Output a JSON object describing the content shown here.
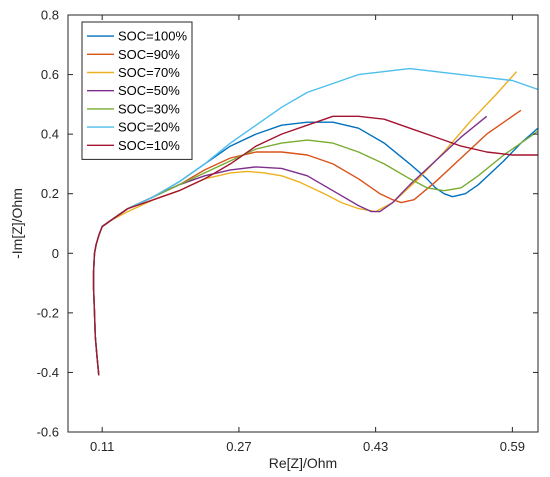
{
  "chart_data": {
    "type": "line",
    "title": "",
    "xlabel": "Re[Z]/Ohm",
    "ylabel": "-Im[Z]/Ohm",
    "xlim": [
      0.07,
      0.62
    ],
    "ylim": [
      -0.6,
      0.8
    ],
    "xticks": [
      0.11,
      0.27,
      0.43,
      0.59
    ],
    "xtick_labels": [
      "0.11",
      "0.27",
      "0.43",
      "0.59"
    ],
    "yticks": [
      -0.6,
      -0.4,
      -0.2,
      0,
      0.2,
      0.4,
      0.6,
      0.8
    ],
    "ytick_labels": [
      "-0.6",
      "-0.4",
      "-0.2",
      "0",
      "0.2",
      "0.4",
      "0.6",
      "0.8"
    ],
    "grid": false,
    "legend_position": "top-left",
    "series": [
      {
        "name": "SOC=100%",
        "color": "#0072BD",
        "x": [
          0.106,
          0.104,
          0.102,
          0.101,
          0.1,
          0.1,
          0.101,
          0.103,
          0.106,
          0.11,
          0.12,
          0.14,
          0.17,
          0.2,
          0.23,
          0.26,
          0.29,
          0.32,
          0.35,
          0.38,
          0.41,
          0.44,
          0.47,
          0.49,
          0.5,
          0.51,
          0.52,
          0.535,
          0.55,
          0.565,
          0.58,
          0.6,
          0.62
        ],
        "y": [
          -0.41,
          -0.35,
          -0.28,
          -0.2,
          -0.12,
          -0.06,
          0.0,
          0.03,
          0.06,
          0.09,
          0.11,
          0.15,
          0.19,
          0.24,
          0.3,
          0.36,
          0.4,
          0.43,
          0.44,
          0.44,
          0.42,
          0.37,
          0.3,
          0.25,
          0.22,
          0.2,
          0.19,
          0.2,
          0.23,
          0.27,
          0.31,
          0.37,
          0.42
        ]
      },
      {
        "name": "SOC=90%",
        "color": "#D95319",
        "x": [
          0.106,
          0.104,
          0.102,
          0.101,
          0.1,
          0.1,
          0.101,
          0.103,
          0.106,
          0.11,
          0.12,
          0.14,
          0.17,
          0.2,
          0.23,
          0.26,
          0.29,
          0.32,
          0.35,
          0.38,
          0.41,
          0.435,
          0.45,
          0.46,
          0.475,
          0.5,
          0.53,
          0.56,
          0.6
        ],
        "y": [
          -0.41,
          -0.35,
          -0.28,
          -0.2,
          -0.12,
          -0.06,
          0.0,
          0.03,
          0.06,
          0.09,
          0.11,
          0.15,
          0.19,
          0.23,
          0.28,
          0.32,
          0.34,
          0.34,
          0.33,
          0.3,
          0.25,
          0.2,
          0.18,
          0.17,
          0.18,
          0.24,
          0.32,
          0.4,
          0.48
        ]
      },
      {
        "name": "SOC=70%",
        "color": "#EDB120",
        "x": [
          0.106,
          0.104,
          0.102,
          0.101,
          0.1,
          0.1,
          0.101,
          0.103,
          0.106,
          0.11,
          0.12,
          0.14,
          0.17,
          0.2,
          0.23,
          0.26,
          0.28,
          0.3,
          0.32,
          0.34,
          0.37,
          0.39,
          0.41,
          0.43,
          0.45,
          0.48,
          0.51,
          0.54,
          0.57,
          0.595
        ],
        "y": [
          -0.41,
          -0.35,
          -0.28,
          -0.2,
          -0.12,
          -0.06,
          0.0,
          0.03,
          0.06,
          0.09,
          0.11,
          0.14,
          0.18,
          0.21,
          0.25,
          0.27,
          0.275,
          0.27,
          0.26,
          0.24,
          0.2,
          0.17,
          0.15,
          0.14,
          0.17,
          0.25,
          0.34,
          0.44,
          0.53,
          0.61
        ]
      },
      {
        "name": "SOC=50%",
        "color": "#7E2F8E",
        "x": [
          0.106,
          0.104,
          0.102,
          0.101,
          0.1,
          0.1,
          0.101,
          0.103,
          0.106,
          0.11,
          0.12,
          0.14,
          0.17,
          0.2,
          0.23,
          0.26,
          0.29,
          0.32,
          0.35,
          0.38,
          0.41,
          0.425,
          0.435,
          0.45,
          0.47,
          0.5,
          0.53,
          0.56
        ],
        "y": [
          -0.41,
          -0.35,
          -0.28,
          -0.2,
          -0.12,
          -0.06,
          0.0,
          0.03,
          0.06,
          0.09,
          0.11,
          0.15,
          0.19,
          0.23,
          0.26,
          0.28,
          0.29,
          0.285,
          0.26,
          0.21,
          0.16,
          0.14,
          0.14,
          0.17,
          0.23,
          0.31,
          0.39,
          0.46
        ]
      },
      {
        "name": "SOC=30%",
        "color": "#77AC30",
        "x": [
          0.106,
          0.104,
          0.102,
          0.101,
          0.1,
          0.1,
          0.101,
          0.103,
          0.106,
          0.11,
          0.12,
          0.14,
          0.17,
          0.2,
          0.23,
          0.26,
          0.29,
          0.32,
          0.35,
          0.38,
          0.41,
          0.44,
          0.47,
          0.49,
          0.51,
          0.53,
          0.55,
          0.58,
          0.62
        ],
        "y": [
          -0.41,
          -0.35,
          -0.28,
          -0.2,
          -0.12,
          -0.06,
          0.0,
          0.03,
          0.06,
          0.09,
          0.11,
          0.15,
          0.19,
          0.23,
          0.27,
          0.31,
          0.35,
          0.37,
          0.38,
          0.37,
          0.34,
          0.3,
          0.25,
          0.22,
          0.21,
          0.22,
          0.26,
          0.33,
          0.41
        ]
      },
      {
        "name": "SOC=20%",
        "color": "#4DBEEE",
        "x": [
          0.106,
          0.104,
          0.102,
          0.101,
          0.1,
          0.1,
          0.101,
          0.103,
          0.106,
          0.11,
          0.12,
          0.14,
          0.17,
          0.2,
          0.23,
          0.26,
          0.29,
          0.32,
          0.35,
          0.38,
          0.41,
          0.44,
          0.47,
          0.5,
          0.53,
          0.56,
          0.59,
          0.62
        ],
        "y": [
          -0.41,
          -0.35,
          -0.28,
          -0.2,
          -0.12,
          -0.06,
          0.0,
          0.03,
          0.06,
          0.09,
          0.11,
          0.15,
          0.19,
          0.24,
          0.3,
          0.37,
          0.43,
          0.49,
          0.54,
          0.57,
          0.6,
          0.61,
          0.62,
          0.61,
          0.6,
          0.59,
          0.58,
          0.55
        ]
      },
      {
        "name": "SOC=10%",
        "color": "#A2142F",
        "x": [
          0.106,
          0.104,
          0.102,
          0.101,
          0.1,
          0.1,
          0.101,
          0.103,
          0.106,
          0.11,
          0.12,
          0.14,
          0.17,
          0.2,
          0.23,
          0.26,
          0.29,
          0.32,
          0.35,
          0.38,
          0.41,
          0.44,
          0.47,
          0.5,
          0.53,
          0.56,
          0.59,
          0.62
        ],
        "y": [
          -0.41,
          -0.35,
          -0.28,
          -0.2,
          -0.12,
          -0.06,
          0.0,
          0.03,
          0.06,
          0.09,
          0.11,
          0.15,
          0.18,
          0.21,
          0.25,
          0.3,
          0.36,
          0.4,
          0.43,
          0.46,
          0.46,
          0.45,
          0.42,
          0.39,
          0.36,
          0.34,
          0.33,
          0.33
        ]
      }
    ]
  }
}
